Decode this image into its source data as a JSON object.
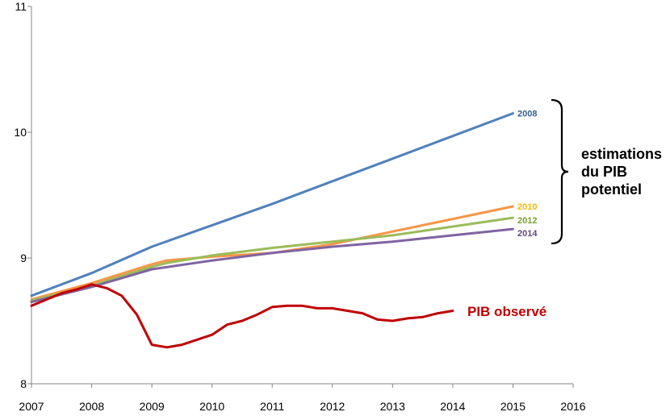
{
  "chart_data": {
    "type": "line",
    "title": "",
    "xlabel": "",
    "ylabel": "",
    "xlim": [
      2007,
      2016
    ],
    "ylim": [
      8,
      11
    ],
    "x_ticks": [
      "2007",
      "2008",
      "2009",
      "2010",
      "2011",
      "2012",
      "2013",
      "2014",
      "2015",
      "2016"
    ],
    "y_ticks": [
      "8",
      "9",
      "10",
      "11"
    ],
    "grid": false,
    "series": [
      {
        "name": "2008",
        "color": "#4f81bd",
        "points": [
          [
            2007.0,
            8.7
          ],
          [
            2008.0,
            8.88
          ],
          [
            2009.0,
            9.09
          ],
          [
            2010.0,
            9.26
          ],
          [
            2011.0,
            9.43
          ],
          [
            2012.0,
            9.61
          ],
          [
            2013.0,
            9.79
          ],
          [
            2014.0,
            9.97
          ],
          [
            2015.0,
            10.15
          ]
        ]
      },
      {
        "name": "2010",
        "color": "#f79646",
        "points": [
          [
            2007.0,
            8.67
          ],
          [
            2008.0,
            8.8
          ],
          [
            2009.0,
            8.95
          ],
          [
            2009.25,
            8.98
          ],
          [
            2010.0,
            9.01
          ],
          [
            2011.0,
            9.04
          ],
          [
            2012.0,
            9.11
          ],
          [
            2013.0,
            9.21
          ],
          [
            2014.0,
            9.31
          ],
          [
            2015.0,
            9.41
          ]
        ]
      },
      {
        "name": "2012",
        "color": "#9bbb59",
        "points": [
          [
            2007.0,
            8.66
          ],
          [
            2008.0,
            8.78
          ],
          [
            2009.0,
            8.93
          ],
          [
            2009.25,
            8.96
          ],
          [
            2010.0,
            9.02
          ],
          [
            2011.0,
            9.08
          ],
          [
            2012.0,
            9.13
          ],
          [
            2013.0,
            9.18
          ],
          [
            2014.0,
            9.25
          ],
          [
            2015.0,
            9.32
          ]
        ]
      },
      {
        "name": "2014",
        "color": "#8064a2",
        "points": [
          [
            2007.0,
            8.65
          ],
          [
            2008.0,
            8.77
          ],
          [
            2009.0,
            8.91
          ],
          [
            2010.0,
            8.98
          ],
          [
            2011.0,
            9.04
          ],
          [
            2012.0,
            9.09
          ],
          [
            2013.0,
            9.13
          ],
          [
            2014.0,
            9.18
          ],
          [
            2015.0,
            9.23
          ]
        ]
      },
      {
        "name": "PIB observé",
        "color": "#c00000",
        "points": [
          [
            2007.0,
            8.62
          ],
          [
            2007.25,
            8.67
          ],
          [
            2007.5,
            8.72
          ],
          [
            2007.75,
            8.75
          ],
          [
            2008.0,
            8.79
          ],
          [
            2008.25,
            8.76
          ],
          [
            2008.5,
            8.7
          ],
          [
            2008.75,
            8.55
          ],
          [
            2009.0,
            8.31
          ],
          [
            2009.25,
            8.29
          ],
          [
            2009.5,
            8.31
          ],
          [
            2009.75,
            8.35
          ],
          [
            2010.0,
            8.39
          ],
          [
            2010.25,
            8.47
          ],
          [
            2010.5,
            8.5
          ],
          [
            2010.75,
            8.55
          ],
          [
            2011.0,
            8.61
          ],
          [
            2011.25,
            8.62
          ],
          [
            2011.5,
            8.62
          ],
          [
            2011.75,
            8.6
          ],
          [
            2012.0,
            8.6
          ],
          [
            2012.25,
            8.58
          ],
          [
            2012.5,
            8.56
          ],
          [
            2012.75,
            8.51
          ],
          [
            2013.0,
            8.5
          ],
          [
            2013.25,
            8.52
          ],
          [
            2013.5,
            8.53
          ],
          [
            2013.75,
            8.56
          ],
          [
            2014.0,
            8.58
          ]
        ]
      }
    ],
    "end_labels": [
      {
        "text": "2008",
        "color": "#376092",
        "anchor_y": 10.15
      },
      {
        "text": "2010",
        "color": "#f5b800",
        "anchor_y": 9.41
      },
      {
        "text": "2012",
        "color": "#77a22f",
        "anchor_y": 9.3
      },
      {
        "text": "2014",
        "color": "#60497a",
        "anchor_y": 9.2
      }
    ],
    "annotations": {
      "bracket_lines": [
        "estimations",
        "du PIB",
        "potentiel"
      ],
      "observed_label": "PIB observé"
    }
  }
}
